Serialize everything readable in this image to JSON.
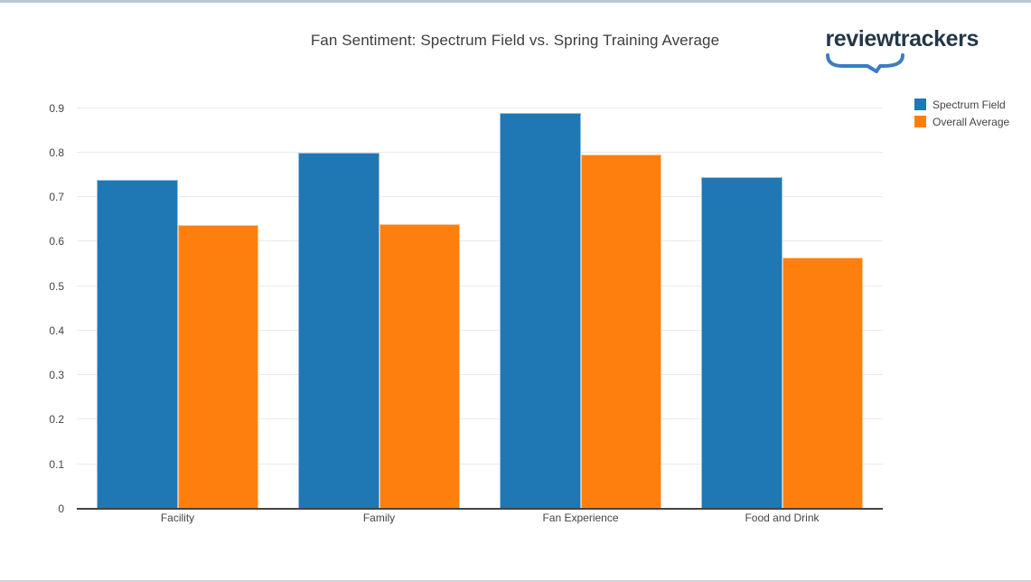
{
  "page": {
    "top_border_color": "#b7c8d4",
    "bottom_border_color": "#cdd5da"
  },
  "header": {
    "title": "Fan Sentiment: Spectrum Field vs. Spring Training Average",
    "logo_text": "reviewtrackers",
    "logo_text_color": "#233747",
    "logo_swoosh_color": "#3b7cc4"
  },
  "chart_data": {
    "type": "bar",
    "title": "Fan Sentiment: Spectrum Field vs. Spring Training Average",
    "categories": [
      "Facility",
      "Family",
      "Fan Experience",
      "Food and Drink"
    ],
    "series": [
      {
        "name": "Spectrum Field",
        "color": "#1f77b4",
        "values": [
          0.738,
          0.8,
          0.89,
          0.744
        ]
      },
      {
        "name": "Overall Average",
        "color": "#ff7f0e",
        "values": [
          0.637,
          0.64,
          0.796,
          0.565
        ]
      }
    ],
    "xlabel": "",
    "ylabel": "",
    "ylim": [
      0,
      0.95
    ],
    "yticks": [
      0,
      0.1,
      0.2,
      0.3,
      0.4,
      0.5,
      0.6,
      0.7,
      0.8,
      0.9
    ],
    "grid": true,
    "legend_position": "top-right"
  }
}
